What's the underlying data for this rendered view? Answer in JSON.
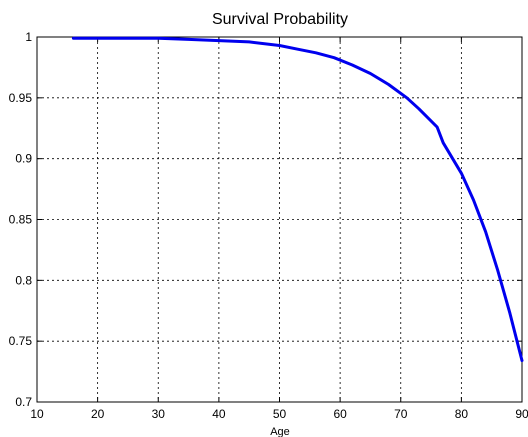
{
  "chart_data": {
    "type": "line",
    "title": "Survival Probability",
    "xlabel": "Age",
    "ylabel": "",
    "xlim": [
      10,
      90
    ],
    "ylim": [
      0.7,
      1.0
    ],
    "xticks": [
      10,
      20,
      30,
      40,
      50,
      60,
      70,
      80,
      90
    ],
    "yticks": [
      0.7,
      0.75,
      0.8,
      0.85,
      0.9,
      0.95,
      1.0
    ],
    "xtick_labels": [
      "10",
      "20",
      "30",
      "40",
      "50",
      "60",
      "70",
      "80",
      "90"
    ],
    "ytick_labels": [
      "0.7",
      "0.75",
      "0.8",
      "0.85",
      "0.9",
      "0.95",
      "1"
    ],
    "grid": true,
    "grid_style": "dotted",
    "series": [
      {
        "color": "#0000ee",
        "x": [
          16,
          20,
          25,
          30,
          35,
          40,
          45,
          50,
          53,
          56,
          59,
          62,
          65,
          68,
          71,
          73,
          76,
          77,
          80,
          82,
          84,
          86,
          88,
          90
        ],
        "y": [
          0.999,
          0.999,
          0.999,
          0.999,
          0.998,
          0.997,
          0.996,
          0.993,
          0.99,
          0.987,
          0.983,
          0.977,
          0.97,
          0.961,
          0.95,
          0.941,
          0.926,
          0.913,
          0.888,
          0.866,
          0.84,
          0.808,
          0.773,
          0.734
        ]
      }
    ]
  }
}
